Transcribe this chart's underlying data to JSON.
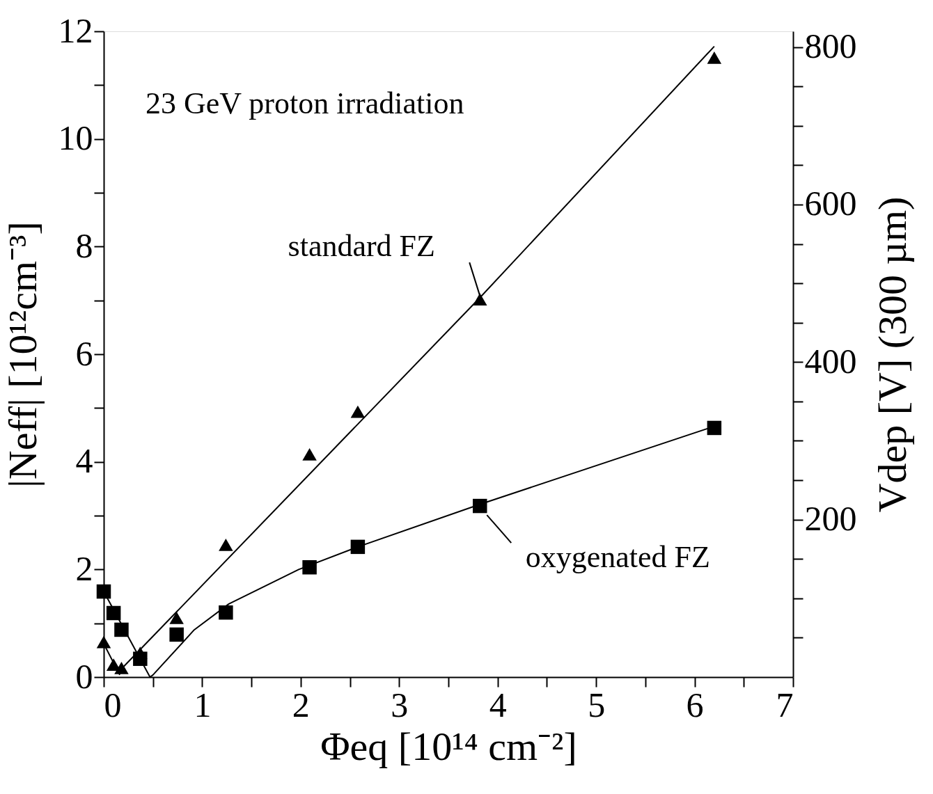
{
  "chart_data": {
    "type": "scatter",
    "xlabel": "Φeq [10¹⁴ cm⁻²]",
    "ylabel": "|Neff|  [10¹²cm⁻³]",
    "y2label": "Vdep [V] (300 µm)",
    "xlim": [
      0,
      7
    ],
    "ylim": [
      0,
      12
    ],
    "y2lim": [
      0,
      820
    ],
    "xticks": [
      0,
      {
        "value": 0.5,
        "label": null
      },
      1,
      {
        "value": 1.5,
        "label": null
      },
      2,
      {
        "value": 2.5,
        "label": null
      },
      3,
      {
        "value": 3.5,
        "label": null
      },
      4,
      {
        "value": 4.5,
        "label": null
      },
      5,
      {
        "value": 5.5,
        "label": null
      },
      6,
      {
        "value": 6.5,
        "label": null
      },
      7
    ],
    "yticks": [
      0,
      {
        "value": 1,
        "label": null
      },
      2,
      {
        "value": 3,
        "label": null
      },
      4,
      {
        "value": 5,
        "label": null
      },
      6,
      {
        "value": 7,
        "label": null
      },
      8,
      {
        "value": 9,
        "label": null
      },
      10,
      {
        "value": 11,
        "label": null
      },
      12
    ],
    "y2ticks": [
      {
        "value": 50,
        "label": null
      },
      {
        "value": 100,
        "label": null
      },
      {
        "value": 150,
        "label": null
      },
      200,
      {
        "value": 250,
        "label": null
      },
      {
        "value": 300,
        "label": null
      },
      {
        "value": 350,
        "label": null
      },
      400,
      {
        "value": 450,
        "label": null
      },
      {
        "value": 500,
        "label": null
      },
      {
        "value": 550,
        "label": null
      },
      600,
      {
        "value": 650,
        "label": null
      },
      {
        "value": 700,
        "label": null
      },
      {
        "value": 750,
        "label": null
      },
      800
    ],
    "grid": false,
    "series": [
      {
        "type": "line",
        "color": "#000000",
        "line_style": "solid",
        "x": [
          0,
          0.16,
          0.2,
          3.82,
          6.2
        ],
        "values": [
          0.62,
          0.05,
          0.19,
          7.05,
          11.72
        ]
      },
      {
        "type": "line",
        "color": "#000000",
        "line_style": "solid",
        "x": [
          0,
          0.47,
          0.5,
          0.92,
          1.27,
          1.98,
          2.58,
          3.82,
          6.2
        ],
        "values": [
          1.59,
          0.0,
          0.04,
          0.88,
          1.36,
          2.0,
          2.42,
          3.21,
          4.66
        ]
      },
      {
        "color": "#000000",
        "marker": "square",
        "x": [
          0,
          0.1,
          0.18,
          0.37,
          0.74,
          1.24,
          2.09,
          2.58,
          3.82,
          6.2
        ],
        "values": [
          1.59,
          1.19,
          0.88,
          0.34,
          0.79,
          1.2,
          2.04,
          2.42,
          3.18,
          4.63
        ]
      },
      {
        "color": "#000000",
        "marker": "triangle",
        "x": [
          0,
          0.1,
          0.18,
          0.37,
          0.74,
          1.24,
          2.09,
          2.58,
          3.82,
          6.2
        ],
        "values": [
          0.65,
          0.23,
          0.17,
          0.45,
          1.1,
          2.46,
          4.14,
          4.93,
          7.02,
          11.51
        ]
      }
    ],
    "annotations": [
      "23 GeV proton irradiation",
      {
        "text": "standard FZ",
        "x": 3.82,
        "y": 7.02
      },
      {
        "text": "oxygenated FZ",
        "x": 3.82,
        "y": 3.18
      }
    ]
  }
}
